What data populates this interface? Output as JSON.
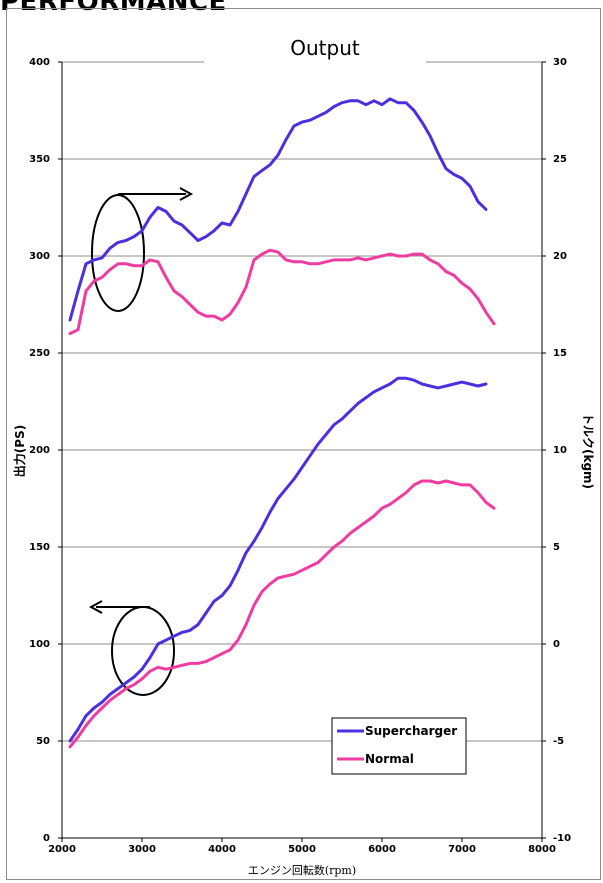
{
  "page": {
    "heading": "PERFORMANCE"
  },
  "chart_data": {
    "type": "line",
    "title": "Output",
    "xlabel": "エンジン回転数(rpm)",
    "ylabel": "出力(PS)",
    "y2label": "トルク(kgm)",
    "xlim": [
      2000,
      8000
    ],
    "ylim": [
      0,
      400
    ],
    "y2lim": [
      -10,
      30
    ],
    "xticks": [
      2000,
      3000,
      4000,
      5000,
      6000,
      7000,
      8000
    ],
    "yticks": [
      0,
      50,
      100,
      150,
      200,
      250,
      300,
      350,
      400
    ],
    "y2ticks": [
      -10,
      -5,
      0,
      5,
      10,
      15,
      20,
      25,
      30
    ],
    "grid": "horizontal",
    "legend_position": "lower-right",
    "colors": {
      "Supercharger": "#4b2fe0",
      "Normal": "#f03ca0"
    },
    "series": [
      {
        "name": "Supercharger",
        "kind": "power",
        "axis": "left",
        "x": [
          2100,
          2200,
          2300,
          2400,
          2500,
          2600,
          2700,
          2800,
          2900,
          3000,
          3100,
          3200,
          3300,
          3400,
          3500,
          3600,
          3700,
          3800,
          3900,
          4000,
          4100,
          4200,
          4300,
          4400,
          4500,
          4600,
          4700,
          4800,
          4900,
          5000,
          5100,
          5200,
          5300,
          5400,
          5500,
          5600,
          5700,
          5800,
          5900,
          6000,
          6100,
          6200,
          6300,
          6400,
          6500,
          6600,
          6700,
          6800,
          6900,
          7000,
          7100,
          7200,
          7300
        ],
        "values": [
          50,
          56,
          63,
          67,
          70,
          74,
          77,
          80,
          83,
          87,
          93,
          100,
          102,
          104,
          106,
          107,
          110,
          116,
          122,
          125,
          130,
          138,
          147,
          153,
          160,
          168,
          175,
          180,
          185,
          191,
          197,
          203,
          208,
          213,
          216,
          220,
          224,
          227,
          230,
          232,
          234,
          237,
          237,
          236,
          234,
          233,
          232,
          233,
          234,
          235,
          234,
          233,
          234
        ]
      },
      {
        "name": "Normal",
        "kind": "power",
        "axis": "left",
        "x": [
          2100,
          2200,
          2300,
          2400,
          2500,
          2600,
          2700,
          2800,
          2900,
          3000,
          3100,
          3200,
          3300,
          3400,
          3500,
          3600,
          3700,
          3800,
          3900,
          4000,
          4100,
          4200,
          4300,
          4400,
          4500,
          4600,
          4700,
          4800,
          4900,
          5000,
          5100,
          5200,
          5300,
          5400,
          5500,
          5600,
          5700,
          5800,
          5900,
          6000,
          6100,
          6200,
          6300,
          6400,
          6500,
          6600,
          6700,
          6800,
          6900,
          7000,
          7100,
          7200,
          7300,
          7400
        ],
        "values": [
          47,
          52,
          58,
          63,
          67,
          71,
          74,
          77,
          79,
          82,
          86,
          88,
          87,
          88,
          89,
          90,
          90,
          91,
          93,
          95,
          97,
          102,
          110,
          120,
          127,
          131,
          134,
          135,
          136,
          138,
          140,
          142,
          146,
          150,
          153,
          157,
          160,
          163,
          166,
          170,
          172,
          175,
          178,
          182,
          184,
          184,
          183,
          184,
          183,
          182,
          182,
          178,
          173,
          170
        ]
      },
      {
        "name": "Supercharger",
        "kind": "torque",
        "axis": "right",
        "x": [
          2100,
          2200,
          2300,
          2400,
          2500,
          2600,
          2700,
          2800,
          2900,
          3000,
          3100,
          3200,
          3300,
          3400,
          3500,
          3600,
          3700,
          3800,
          3900,
          4000,
          4100,
          4200,
          4300,
          4400,
          4500,
          4600,
          4700,
          4800,
          4900,
          5000,
          5100,
          5200,
          5300,
          5400,
          5500,
          5600,
          5700,
          5800,
          5900,
          6000,
          6100,
          6200,
          6300,
          6400,
          6500,
          6600,
          6700,
          6800,
          6900,
          7000,
          7100,
          7200,
          7300
        ],
        "values": [
          16.7,
          18.2,
          19.6,
          19.8,
          19.9,
          20.4,
          20.7,
          20.8,
          21.0,
          21.3,
          22.0,
          22.5,
          22.3,
          21.8,
          21.6,
          21.2,
          20.8,
          21.0,
          21.3,
          21.7,
          21.6,
          22.3,
          23.2,
          24.1,
          24.4,
          24.7,
          25.2,
          26.0,
          26.7,
          26.9,
          27.0,
          27.2,
          27.4,
          27.7,
          27.9,
          28.0,
          28.0,
          27.8,
          28.0,
          27.8,
          28.1,
          27.9,
          27.9,
          27.5,
          26.9,
          26.2,
          25.3,
          24.5,
          24.2,
          24.0,
          23.6,
          22.8,
          22.4
        ]
      },
      {
        "name": "Normal",
        "kind": "torque",
        "axis": "right",
        "x": [
          2100,
          2200,
          2300,
          2400,
          2500,
          2600,
          2700,
          2800,
          2900,
          3000,
          3100,
          3200,
          3300,
          3400,
          3500,
          3600,
          3700,
          3800,
          3900,
          4000,
          4100,
          4200,
          4300,
          4400,
          4500,
          4600,
          4700,
          4800,
          4900,
          5000,
          5100,
          5200,
          5300,
          5400,
          5500,
          5600,
          5700,
          5800,
          5900,
          6000,
          6100,
          6200,
          6300,
          6400,
          6500,
          6600,
          6700,
          6800,
          6900,
          7000,
          7100,
          7200,
          7300,
          7400
        ],
        "values": [
          16.0,
          16.2,
          18.2,
          18.7,
          18.9,
          19.3,
          19.6,
          19.6,
          19.5,
          19.5,
          19.8,
          19.7,
          18.9,
          18.2,
          17.9,
          17.5,
          17.1,
          16.9,
          16.9,
          16.7,
          17.0,
          17.6,
          18.4,
          19.8,
          20.1,
          20.3,
          20.2,
          19.8,
          19.7,
          19.7,
          19.6,
          19.6,
          19.7,
          19.8,
          19.8,
          19.8,
          19.9,
          19.8,
          19.9,
          20.0,
          20.1,
          20.0,
          20.0,
          20.1,
          20.1,
          19.8,
          19.6,
          19.2,
          19.0,
          18.6,
          18.3,
          17.8,
          17.1,
          16.5
        ]
      }
    ],
    "legend": [
      "Supercharger",
      "Normal"
    ]
  }
}
